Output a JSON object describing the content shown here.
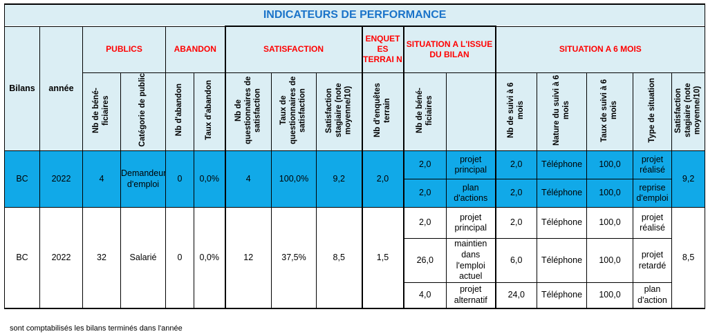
{
  "title": "INDICATEURS DE PERFORMANCE",
  "headers": {
    "bilans": "Bilans",
    "annee": "année",
    "groups": {
      "publics": "PUBLICS",
      "abandon": "ABANDON",
      "satisfaction": "SATISFACTION",
      "enquetes": "ENQUET ES TERRAI N",
      "situation_issue": "SITUATION A L'ISSUE DU BILAN",
      "situation_6mois": "SITUATION A 6 MOIS"
    },
    "cols": {
      "nb_beneficiaires": "Nb de béné-ficiaires",
      "categorie_public": "Catégorie de public",
      "nb_abandon": "Nb d'abandon",
      "taux_abandon": "Taux d'abandon",
      "nb_questionnaires": "Nb de questionnaires de satisfaction",
      "taux_questionnaires": "Taux de questionnaires de satisfaction",
      "satisfaction_stagiaire": "Satisfaction stagiaire (note moyenne/10)",
      "nb_enquetes_terrain": "Nb d'enquêtes terrain",
      "nb_beneficiaires_issue": "Nb de béné-ficiaires",
      "nb_suivi_6mois": "Nb de suivi à 6 mois",
      "nature_suivi_6mois": "Nature du suivi à 6 mois",
      "taux_suivi_6mois": "Taux de suivi à 6 mois",
      "type_situation": "Type de situation",
      "satisfaction_stagiaire_6mois": "Satisfaction stagiaire (note moyenne/10)"
    }
  },
  "rows": [
    {
      "bilans": "BC",
      "annee": "2022",
      "nb_beneficiaires": "4",
      "categorie": "Demandeur d'emploi",
      "nb_abandon": "0",
      "taux_abandon": "0,0%",
      "nb_questionnaires": "4",
      "taux_questionnaires": "100,0%",
      "satisfaction": "9,2",
      "nb_enquetes": "2,0",
      "satisfaction_6mois": "9,2",
      "situations": [
        {
          "nb": "2,0",
          "label": "projet principal",
          "nb_suivi": "2,0",
          "nature": "Téléphone",
          "taux": "100,0",
          "type": "projet réalisé"
        },
        {
          "nb": "2,0",
          "label": "plan d'actions",
          "nb_suivi": "2,0",
          "nature": "Téléphone",
          "taux": "100,0",
          "type": "reprise d'emploi"
        }
      ]
    },
    {
      "bilans": "BC",
      "annee": "2022",
      "nb_beneficiaires": "32",
      "categorie": "Salarié",
      "nb_abandon": "0",
      "taux_abandon": "0,0%",
      "nb_questionnaires": "12",
      "taux_questionnaires": "37,5%",
      "satisfaction": "8,5",
      "nb_enquetes": "1,5",
      "satisfaction_6mois": "8,5",
      "situations": [
        {
          "nb": "2,0",
          "label": "projet principal",
          "nb_suivi": "2,0",
          "nature": "Téléphone",
          "taux": "100,0",
          "type": "projet réalisé"
        },
        {
          "nb": "26,0",
          "label": "maintien dans l'emploi actuel",
          "nb_suivi": "6,0",
          "nature": "Téléphone",
          "taux": "100,0",
          "type": "projet retardé"
        },
        {
          "nb": "4,0",
          "label": "projet alternatif",
          "nb_suivi": "24,0",
          "nature": "Téléphone",
          "taux": "100,0",
          "type": "plan d'action"
        }
      ]
    }
  ],
  "footnote": "sont comptabilisés les bilans terminés dans l'année"
}
